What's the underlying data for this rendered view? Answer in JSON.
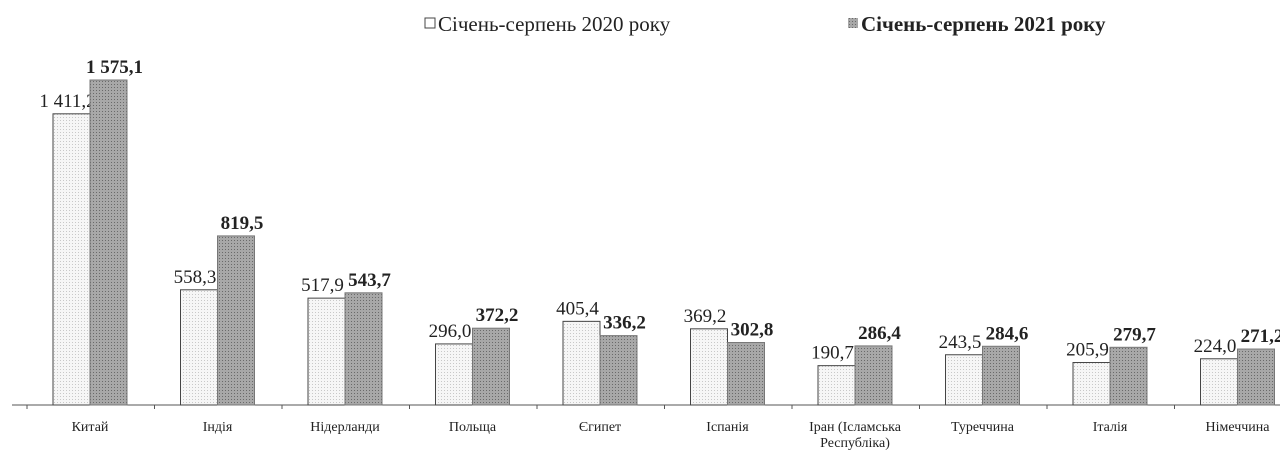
{
  "chart_data": {
    "type": "bar",
    "categories": [
      "Китай",
      "Індія",
      "Нідерланди",
      "Польща",
      "Єгипет",
      "Іспанія",
      "Іран (Ісламська Республіка)",
      "Туреччина",
      "Італія",
      "Німеччина"
    ],
    "series": [
      {
        "name": "Січень-серпень 2020 року",
        "color": "#f2f2f2",
        "values": [
          1411.2,
          558.3,
          517.9,
          296.0,
          405.4,
          369.2,
          190.7,
          243.5,
          205.9,
          224.0
        ],
        "value_labels": [
          "1 411,2",
          "558,3",
          "517,9",
          "296,0",
          "405,4",
          "369,2",
          "190,7",
          "243,5",
          "205,9",
          "224,0"
        ]
      },
      {
        "name": "Січень-серпень 2021 року",
        "color": "#9c9c9c",
        "values": [
          1575.1,
          819.5,
          543.7,
          372.2,
          336.2,
          302.8,
          286.4,
          284.6,
          279.7,
          271.2
        ],
        "value_labels": [
          "1 575,1",
          "819,5",
          "543,7",
          "372,2",
          "336,2",
          "302,8",
          "286,4",
          "284,6",
          "279,7",
          "271,2"
        ]
      }
    ]
  }
}
